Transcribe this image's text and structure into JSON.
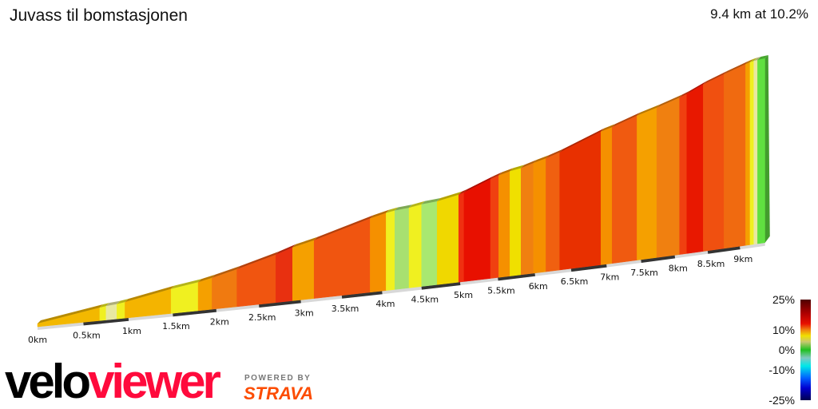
{
  "header": {
    "title": "Juvass til bomstasjonen",
    "summary": "9.4 km at 10.2%"
  },
  "branding": {
    "velo": "velo",
    "viewer": "viewer",
    "powered_by": "POWERED BY",
    "strava": "STRAVA",
    "velo_color": "#000000",
    "viewer_color": "#ff0a3c",
    "strava_color": "#fc4c02"
  },
  "chart_data": {
    "type": "area",
    "title": "Juvass til bomstasjonen",
    "xlabel": "",
    "ylabel": "",
    "total_distance_km": 9.4,
    "average_gradient_pct": 10.2,
    "x_ticks": [
      "0km",
      "0.5km",
      "1km",
      "1.5km",
      "2km",
      "2.5km",
      "3km",
      "3.5km",
      "4km",
      "4.5km",
      "5km",
      "5.5km",
      "6km",
      "6.5km",
      "7km",
      "7.5km",
      "8km",
      "8.5km",
      "9km"
    ],
    "segments": [
      {
        "start": 0,
        "end": 0.68,
        "gradient": 7,
        "color": "#f3b800"
      },
      {
        "start": 0.68,
        "end": 0.75,
        "gradient": 6,
        "color": "#f0f020"
      },
      {
        "start": 0.75,
        "end": 0.87,
        "gradient": 4,
        "color": "#e8e8a0"
      },
      {
        "start": 0.87,
        "end": 0.96,
        "gradient": 6,
        "color": "#f0f020"
      },
      {
        "start": 0.96,
        "end": 1.48,
        "gradient": 8,
        "color": "#f4b400"
      },
      {
        "start": 1.48,
        "end": 1.79,
        "gradient": 6,
        "color": "#f0f020"
      },
      {
        "start": 1.79,
        "end": 1.95,
        "gradient": 9,
        "color": "#f5a000"
      },
      {
        "start": 1.95,
        "end": 2.24,
        "gradient": 10,
        "color": "#f07a10"
      },
      {
        "start": 2.24,
        "end": 2.7,
        "gradient": 11,
        "color": "#f05510"
      },
      {
        "start": 2.7,
        "end": 2.9,
        "gradient": 13,
        "color": "#e83010"
      },
      {
        "start": 2.9,
        "end": 3.16,
        "gradient": 9,
        "color": "#f5a000"
      },
      {
        "start": 3.16,
        "end": 3.85,
        "gradient": 11,
        "color": "#f05510"
      },
      {
        "start": 3.85,
        "end": 4.05,
        "gradient": 9,
        "color": "#f59000"
      },
      {
        "start": 4.05,
        "end": 4.16,
        "gradient": 6,
        "color": "#f0f020"
      },
      {
        "start": 4.16,
        "end": 4.34,
        "gradient": 3,
        "color": "#a8e070"
      },
      {
        "start": 4.34,
        "end": 4.5,
        "gradient": 6,
        "color": "#f0f020"
      },
      {
        "start": 4.5,
        "end": 4.7,
        "gradient": 3,
        "color": "#a8e870"
      },
      {
        "start": 4.7,
        "end": 4.98,
        "gradient": 7,
        "color": "#f0d800"
      },
      {
        "start": 4.98,
        "end": 5.05,
        "gradient": 12,
        "color": "#f03010"
      },
      {
        "start": 5.05,
        "end": 5.4,
        "gradient": 14,
        "color": "#e81000"
      },
      {
        "start": 5.4,
        "end": 5.51,
        "gradient": 12,
        "color": "#f04010"
      },
      {
        "start": 5.51,
        "end": 5.66,
        "gradient": 9,
        "color": "#f59000"
      },
      {
        "start": 5.66,
        "end": 5.81,
        "gradient": 6,
        "color": "#f0e000"
      },
      {
        "start": 5.81,
        "end": 5.98,
        "gradient": 10,
        "color": "#f08010"
      },
      {
        "start": 5.98,
        "end": 6.15,
        "gradient": 9,
        "color": "#f59000"
      },
      {
        "start": 6.15,
        "end": 6.34,
        "gradient": 11,
        "color": "#f06010"
      },
      {
        "start": 6.34,
        "end": 6.92,
        "gradient": 13,
        "color": "#e83000"
      },
      {
        "start": 6.92,
        "end": 7.08,
        "gradient": 9,
        "color": "#f59000"
      },
      {
        "start": 7.08,
        "end": 7.44,
        "gradient": 11,
        "color": "#f05a10"
      },
      {
        "start": 7.44,
        "end": 7.73,
        "gradient": 9,
        "color": "#f5a000"
      },
      {
        "start": 7.73,
        "end": 8.07,
        "gradient": 10,
        "color": "#f08010"
      },
      {
        "start": 8.07,
        "end": 8.18,
        "gradient": 12,
        "color": "#f04010"
      },
      {
        "start": 8.18,
        "end": 8.43,
        "gradient": 14,
        "color": "#e81800"
      },
      {
        "start": 8.43,
        "end": 8.75,
        "gradient": 11,
        "color": "#f05010"
      },
      {
        "start": 8.75,
        "end": 9.09,
        "gradient": 10,
        "color": "#f06a10"
      },
      {
        "start": 9.09,
        "end": 9.16,
        "gradient": 9,
        "color": "#f5a000"
      },
      {
        "start": 9.16,
        "end": 9.22,
        "gradient": 6,
        "color": "#f0f020"
      },
      {
        "start": 9.22,
        "end": 9.28,
        "gradient": 4,
        "color": "#e8e8a0"
      },
      {
        "start": 9.28,
        "end": 9.4,
        "gradient": 2,
        "color": "#60e040"
      }
    ],
    "legend": {
      "labels": [
        "25%",
        "10%",
        "0%",
        "-10%",
        "-25%"
      ],
      "range": [
        -25,
        25
      ],
      "colors": [
        {
          "value": 25,
          "color": "#500000"
        },
        {
          "value": 18,
          "color": "#b00000"
        },
        {
          "value": 13,
          "color": "#e81000"
        },
        {
          "value": 10,
          "color": "#f08010"
        },
        {
          "value": 7,
          "color": "#f0e000"
        },
        {
          "value": 4,
          "color": "#c8c870"
        },
        {
          "value": 0,
          "color": "#20c020"
        },
        {
          "value": -4,
          "color": "#80c8c0"
        },
        {
          "value": -8,
          "color": "#00e8e8"
        },
        {
          "value": -14,
          "color": "#0060ff"
        },
        {
          "value": -19,
          "color": "#0000d0"
        },
        {
          "value": -25,
          "color": "#000050"
        }
      ]
    }
  }
}
